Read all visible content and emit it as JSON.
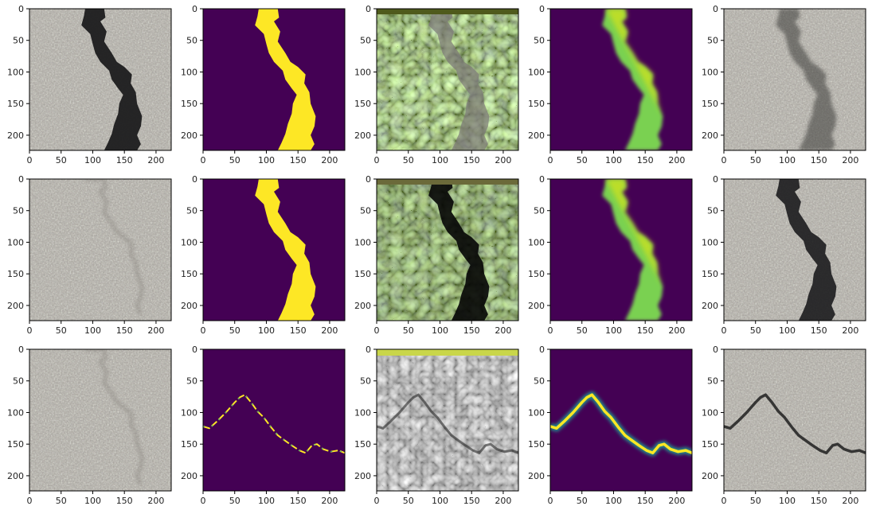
{
  "figure": {
    "rows": 3,
    "cols": 5,
    "x_ticks": [
      "0",
      "50",
      "100",
      "150",
      "200"
    ],
    "y_ticks": [
      "0",
      "50",
      "100",
      "150",
      "200"
    ],
    "x_tick_values": [
      0,
      50,
      100,
      150,
      200
    ],
    "y_tick_values": [
      0,
      50,
      100,
      150,
      200
    ],
    "axis_range": [
      0,
      224
    ],
    "colors": {
      "viridis_dark": "#440154",
      "viridis_yellow": "#fde725",
      "viridis_green": "#7ad151",
      "asphalt": "#a7a39d",
      "crack": "#1c1c1e"
    },
    "panels": [
      {
        "row": 0,
        "col": 0,
        "kind": "photo-crack"
      },
      {
        "row": 0,
        "col": 1,
        "kind": "mask-binary"
      },
      {
        "row": 0,
        "col": 2,
        "kind": "feature-map"
      },
      {
        "row": 0,
        "col": 3,
        "kind": "mask-soft"
      },
      {
        "row": 0,
        "col": 4,
        "kind": "photo-blend"
      },
      {
        "row": 1,
        "col": 0,
        "kind": "photo-clean"
      },
      {
        "row": 1,
        "col": 1,
        "kind": "mask-binary"
      },
      {
        "row": 1,
        "col": 2,
        "kind": "feature-map-dark"
      },
      {
        "row": 1,
        "col": 3,
        "kind": "mask-soft"
      },
      {
        "row": 1,
        "col": 4,
        "kind": "photo-dark-crack"
      },
      {
        "row": 2,
        "col": 0,
        "kind": "photo-clean"
      },
      {
        "row": 2,
        "col": 1,
        "kind": "mask-thin"
      },
      {
        "row": 2,
        "col": 2,
        "kind": "feature-map-gray"
      },
      {
        "row": 2,
        "col": 3,
        "kind": "mask-thin-soft"
      },
      {
        "row": 2,
        "col": 4,
        "kind": "photo-thin-crack"
      }
    ]
  }
}
